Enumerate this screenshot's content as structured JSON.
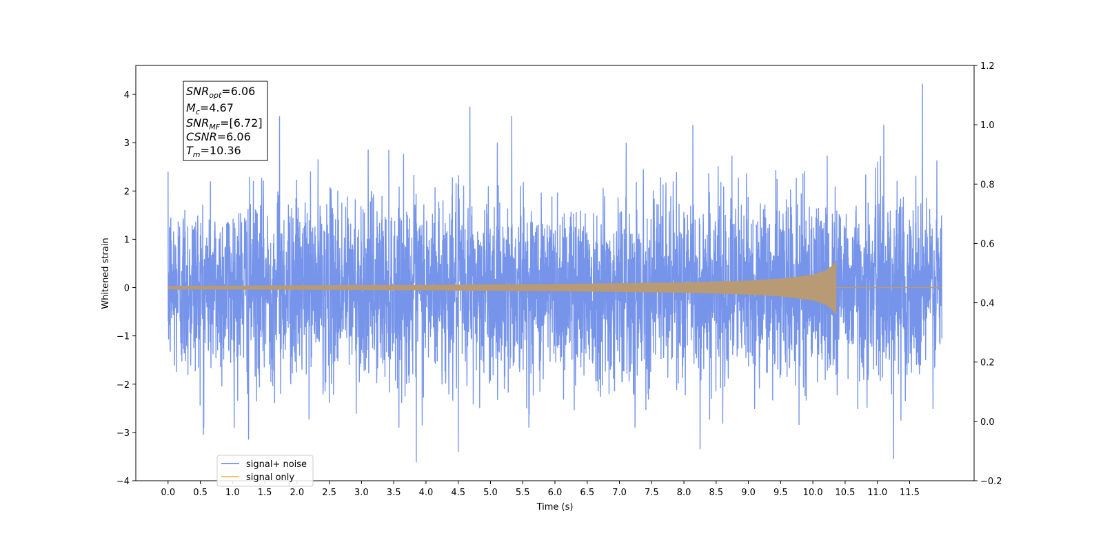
{
  "chart_data": {
    "type": "line",
    "xlabel": "Time (s)",
    "ylabel": "Whitened strain",
    "xlim": [
      -0.5,
      12.5
    ],
    "ylim": [
      -4,
      4.6
    ],
    "y2lim": [
      -0.2,
      1.2
    ],
    "x_ticks": [
      "0.0",
      "0.5",
      "1.0",
      "1.5",
      "2.0",
      "2.5",
      "3.0",
      "3.5",
      "4.0",
      "4.5",
      "5.0",
      "5.5",
      "6.0",
      "6.5",
      "7.0",
      "7.5",
      "8.0",
      "8.5",
      "9.0",
      "9.5",
      "10.0",
      "10.5",
      "11.0",
      "11.5"
    ],
    "y_ticks": [
      "4",
      "3",
      "2",
      "1",
      "0",
      "−1",
      "−2",
      "−3",
      "−4"
    ],
    "y2_ticks": [
      "1.2",
      "1.0",
      "0.8",
      "0.6",
      "0.4",
      "0.2",
      "0.0",
      "−0.2"
    ],
    "annotation": {
      "snr_opt": {
        "sym": "SNR",
        "sub": "opt",
        "value": "=6.06"
      },
      "mc": {
        "sym": "M",
        "sub": "c",
        "value": "=4.67"
      },
      "snr_mf": {
        "sym": "SNR",
        "sub": "MF",
        "value": "=[6.72]"
      },
      "csnr": {
        "sym": "CSNR",
        "value": "=6.06"
      },
      "tm": {
        "sym": "T",
        "sub": "m",
        "value": "=10.36"
      }
    },
    "legend": {
      "placement": "lower-left",
      "entries": [
        "signal+ noise",
        "signal only"
      ]
    },
    "series": [
      {
        "name": "signal+ noise",
        "color": "#6f8ee8",
        "description": "whitened strain noise, amplitude roughly ±2 with spikes up to 4.2 and down to -3.6",
        "time_range": [
          0.0,
          12.0
        ],
        "max": 4.22,
        "min": -3.62,
        "notable_peaks": [
          {
            "x": 0.0,
            "y": 2.4
          },
          {
            "x": 1.73,
            "y": 3.55
          },
          {
            "x": 4.68,
            "y": 3.75
          },
          {
            "x": 5.33,
            "y": 3.55
          },
          {
            "x": 8.14,
            "y": 3.37
          },
          {
            "x": 11.1,
            "y": 3.37
          },
          {
            "x": 11.7,
            "y": 4.22
          }
        ],
        "notable_troughs": [
          {
            "x": 0.55,
            "y": -3.05
          },
          {
            "x": 1.25,
            "y": -3.15
          },
          {
            "x": 3.85,
            "y": -3.62
          },
          {
            "x": 4.5,
            "y": -3.4
          },
          {
            "x": 8.25,
            "y": -3.35
          },
          {
            "x": 11.25,
            "y": -3.55
          }
        ]
      },
      {
        "name": "signal only",
        "color": "#f5b94a",
        "description": "chirp inspiral signal growing in amplitude, merger at 10.36 s then zero",
        "envelope": [
          {
            "t": 0.0,
            "amp": 0.03
          },
          {
            "t": 2.0,
            "amp": 0.04
          },
          {
            "t": 4.0,
            "amp": 0.05
          },
          {
            "t": 6.0,
            "amp": 0.07
          },
          {
            "t": 8.0,
            "amp": 0.1
          },
          {
            "t": 9.0,
            "amp": 0.14
          },
          {
            "t": 9.5,
            "amp": 0.18
          },
          {
            "t": 10.0,
            "amp": 0.26
          },
          {
            "t": 10.2,
            "amp": 0.35
          },
          {
            "t": 10.3,
            "amp": 0.45
          },
          {
            "t": 10.36,
            "amp": 0.55
          }
        ],
        "merger_time": 10.36,
        "end_time": 12.0
      }
    ]
  }
}
